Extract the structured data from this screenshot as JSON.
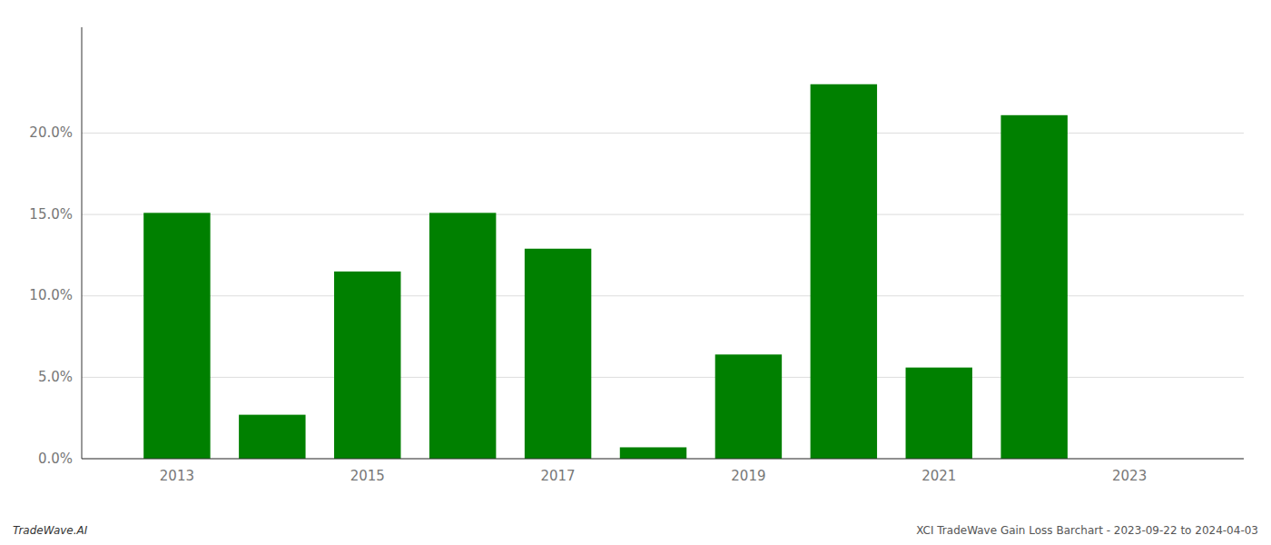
{
  "chart_data": {
    "type": "bar",
    "x": [
      2013,
      2014,
      2015,
      2016,
      2017,
      2018,
      2019,
      2020,
      2021,
      2022,
      2023
    ],
    "values": [
      0.151,
      0.027,
      0.115,
      0.151,
      0.129,
      0.007,
      0.064,
      0.23,
      0.056,
      0.211,
      0.0
    ],
    "color": "#008000",
    "xlim": [
      2012.0,
      2024.2
    ],
    "xticks": [
      2013,
      2015,
      2017,
      2019,
      2021,
      2023
    ],
    "ylim": [
      0,
      0.265
    ],
    "yticks": [
      {
        "value": 0.0,
        "label": "0.0%"
      },
      {
        "value": 0.05,
        "label": "5.0%"
      },
      {
        "value": 0.1,
        "label": "10.0%"
      },
      {
        "value": 0.15,
        "label": "15.0%"
      },
      {
        "value": 0.2,
        "label": "20.0%"
      }
    ],
    "grid": true,
    "annotations": [
      "TradeWave.AI",
      "XCI TradeWave Gain Loss Barchart - 2023-09-22 to 2024-04-03"
    ]
  }
}
